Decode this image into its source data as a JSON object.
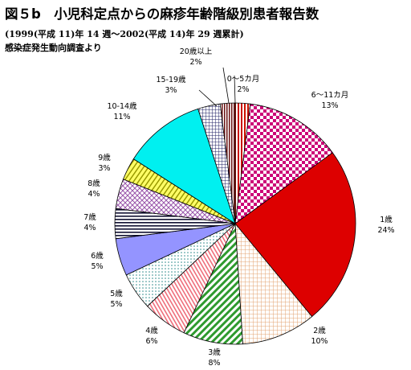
{
  "header": {
    "title": "図５b　小児科定点からの麻疹年齢階級別患者報告数",
    "subtitle": "(1999(平成 11)年 14 週～2002(平成 14)年 29 週累計)",
    "source": "感染症発生動向調査より"
  },
  "chart_data": {
    "type": "pie",
    "title": "図５b　小児科定点からの麻疹年齢階級別患者報告数",
    "start": "12 o'clock",
    "direction": "clockwise",
    "legend": "none",
    "slices": [
      {
        "label": "0～5カ月",
        "pct_label": "2%",
        "value": 2,
        "fill": "stripe-red"
      },
      {
        "label": "6～11カ月",
        "pct_label": "13%",
        "value": 13,
        "fill": "check-magenta"
      },
      {
        "label": "1歳",
        "pct_label": "24%",
        "value": 24,
        "fill": "solid-red"
      },
      {
        "label": "2歳",
        "pct_label": "10%",
        "value": 10,
        "fill": "grid-tan"
      },
      {
        "label": "3歳",
        "pct_label": "8%",
        "value": 8,
        "fill": "diag-green"
      },
      {
        "label": "4歳",
        "pct_label": "6%",
        "value": 6,
        "fill": "stripe-pink"
      },
      {
        "label": "5歳",
        "pct_label": "5%",
        "value": 5,
        "fill": "dots-teal"
      },
      {
        "label": "6歳",
        "pct_label": "5%",
        "value": 5,
        "fill": "solid-violet"
      },
      {
        "label": "7歳",
        "pct_label": "4%",
        "value": 4,
        "fill": "hstripe-navy"
      },
      {
        "label": "8歳",
        "pct_label": "4%",
        "value": 4,
        "fill": "lattice-purple"
      },
      {
        "label": "9歳",
        "pct_label": "3%",
        "value": 3,
        "fill": "diag-yellow"
      },
      {
        "label": "10-14歳",
        "pct_label": "11%",
        "value": 11,
        "fill": "solid-cyan"
      },
      {
        "label": "15-19歳",
        "pct_label": "3%",
        "value": 3,
        "fill": "grid-navy"
      },
      {
        "label": "20歳以上",
        "pct_label": "2%",
        "value": 2,
        "fill": "vstripe-maroon"
      }
    ]
  }
}
